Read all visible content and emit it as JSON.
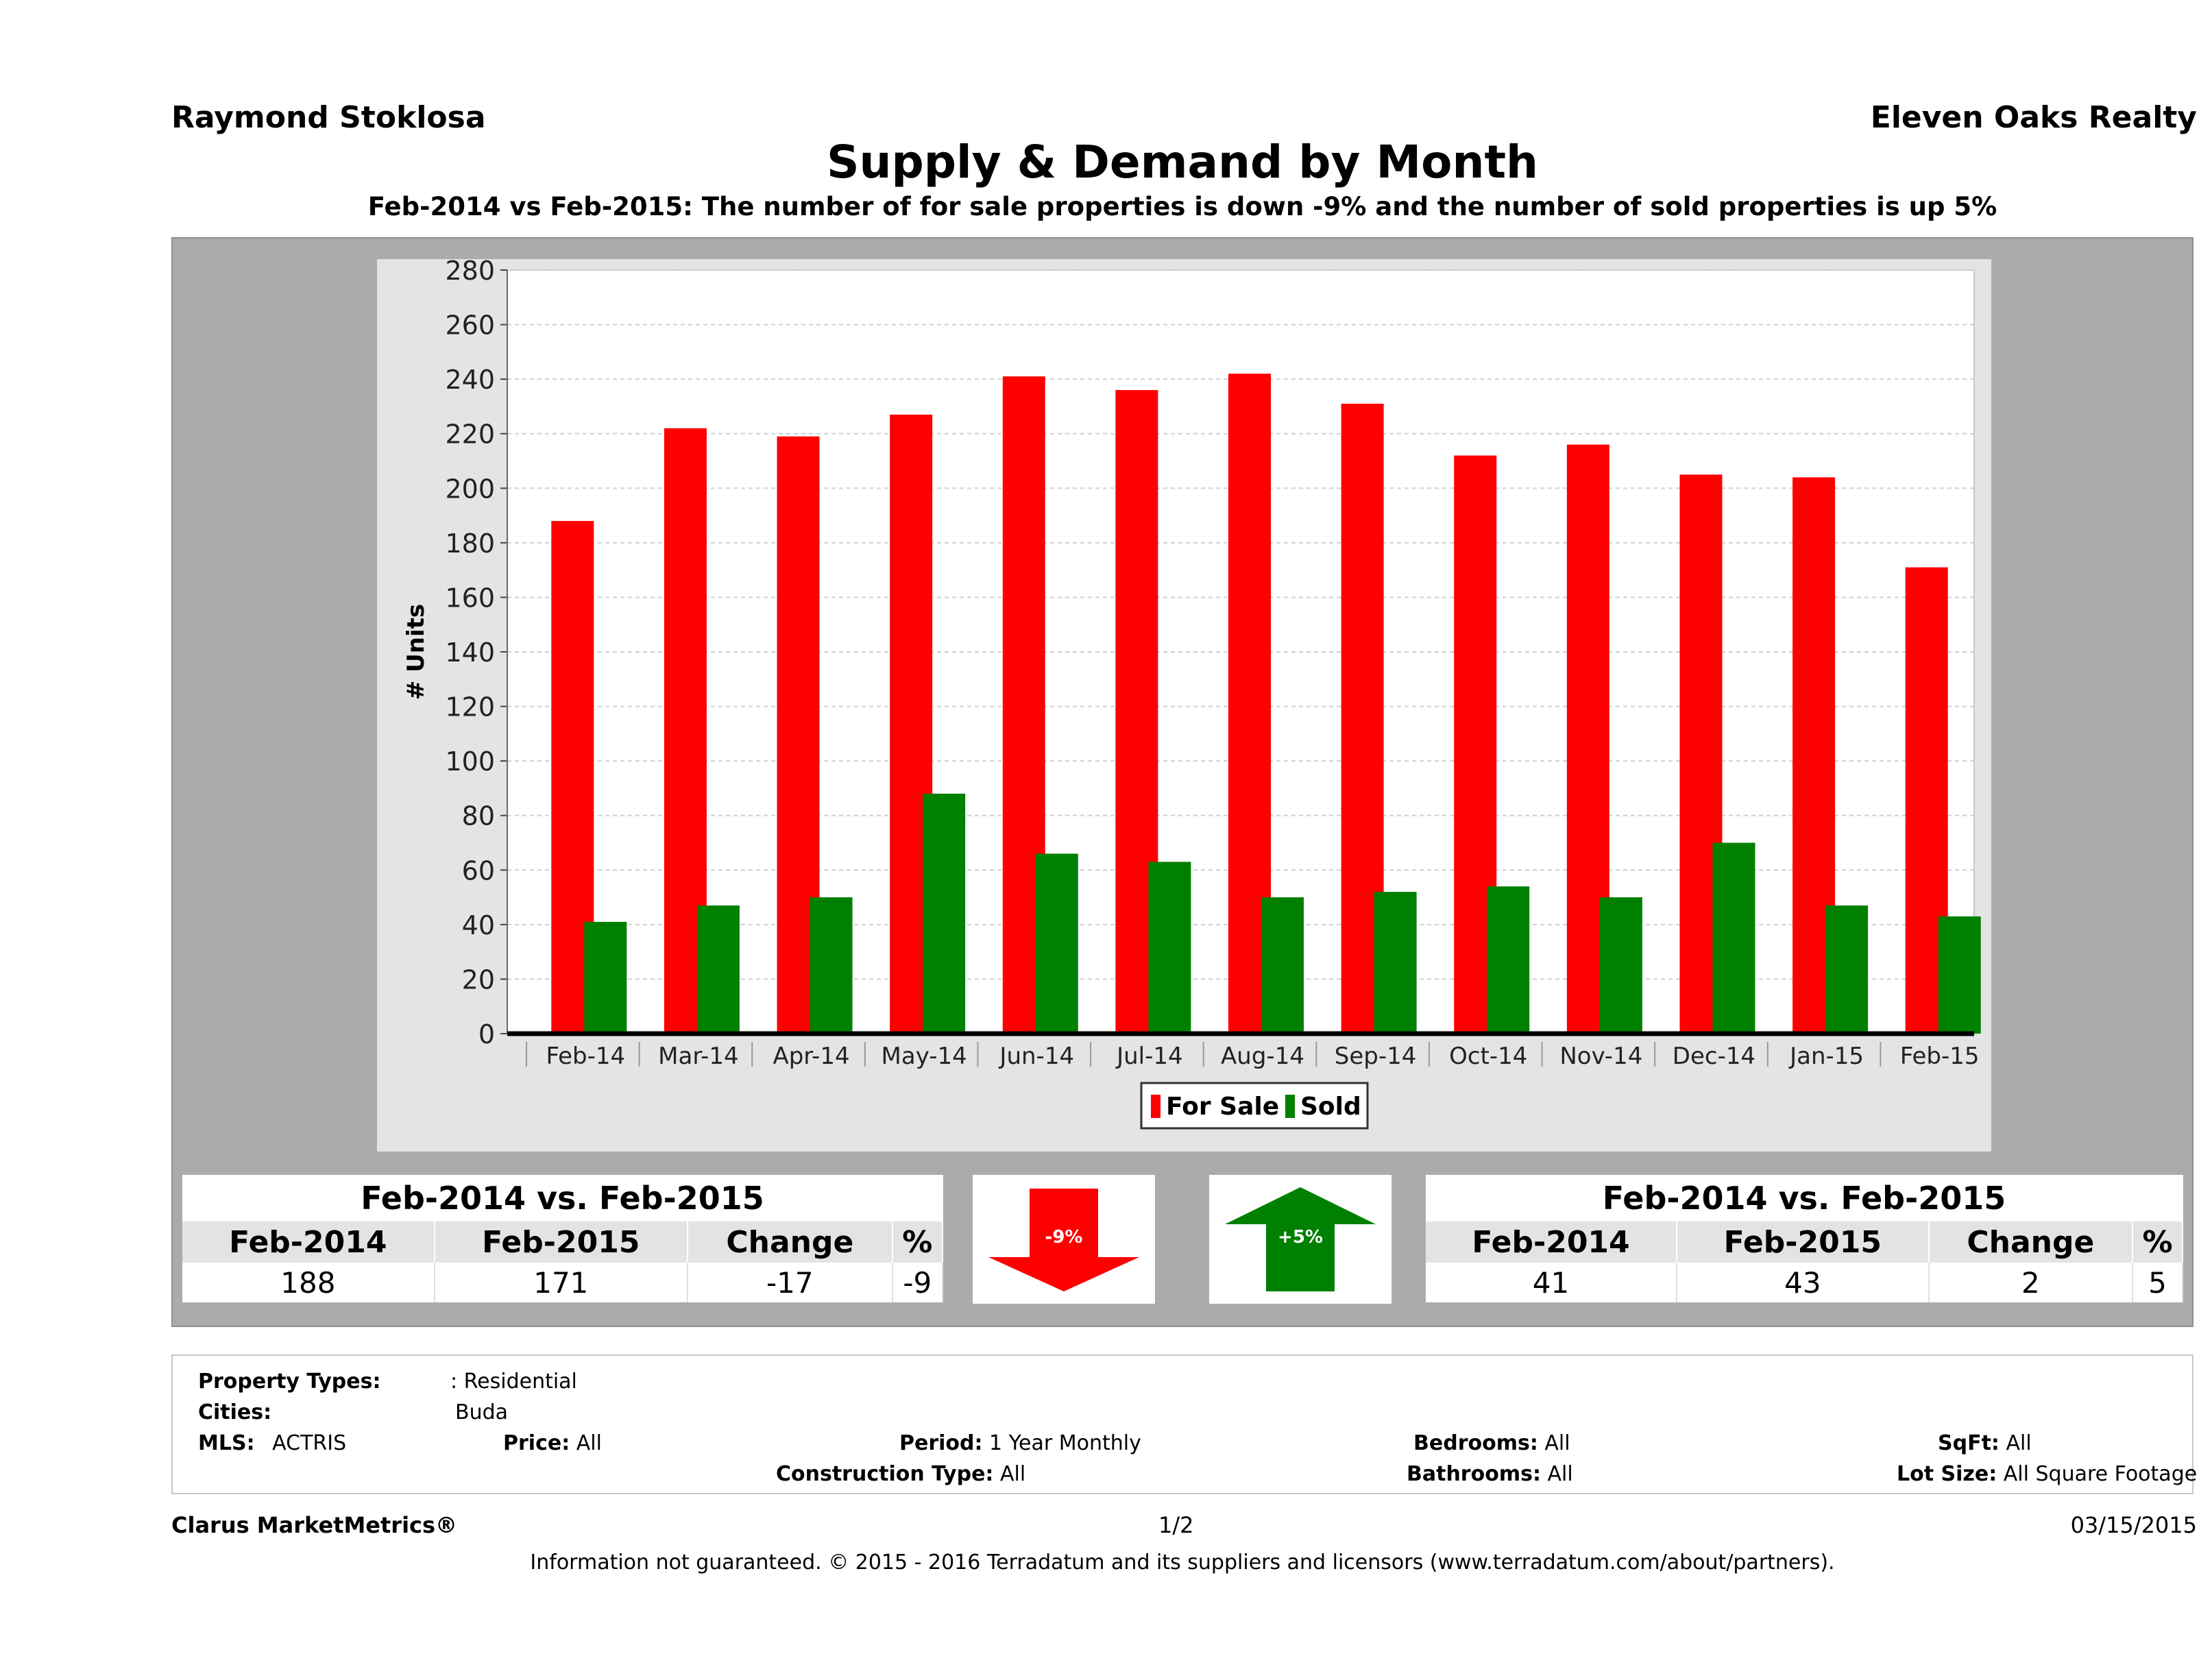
{
  "header": {
    "agent": "Raymond Stoklosa",
    "brokerage": "Eleven Oaks Realty",
    "title": "Supply & Demand by Month",
    "subtitle": "Feb-2014 vs Feb-2015: The number of for sale properties is down -9% and the number of sold properties is up 5%"
  },
  "chart_data": {
    "type": "bar",
    "ylabel": "# Units",
    "xlabel": "",
    "ylim": [
      0,
      280
    ],
    "yticks": [
      0,
      20,
      40,
      60,
      80,
      100,
      120,
      140,
      160,
      180,
      200,
      220,
      240,
      260,
      280
    ],
    "grid": true,
    "legend_position": "bottom-center",
    "categories": [
      "Feb-14",
      "Mar-14",
      "Apr-14",
      "May-14",
      "Jun-14",
      "Jul-14",
      "Aug-14",
      "Sep-14",
      "Oct-14",
      "Nov-14",
      "Dec-14",
      "Jan-15",
      "Feb-15"
    ],
    "series": [
      {
        "name": "For Sale",
        "color": "#ff0000",
        "values": [
          188,
          222,
          219,
          227,
          241,
          236,
          242,
          231,
          212,
          216,
          205,
          204,
          171
        ]
      },
      {
        "name": "Sold",
        "color": "#008000",
        "values": [
          41,
          47,
          50,
          88,
          66,
          63,
          50,
          52,
          54,
          50,
          70,
          47,
          43
        ]
      }
    ]
  },
  "for_sale_table": {
    "caption": "Feb-2014 vs. Feb-2015",
    "headers": [
      "Feb-2014",
      "Feb-2015",
      "Change",
      "%"
    ],
    "values": [
      "188",
      "171",
      "-17",
      "-9"
    ]
  },
  "sold_table": {
    "caption": "Feb-2014 vs. Feb-2015",
    "headers": [
      "Feb-2014",
      "Feb-2015",
      "Change",
      "%"
    ],
    "values": [
      "41",
      "43",
      "2",
      "5"
    ]
  },
  "arrows": {
    "for_sale": {
      "label": "-9%",
      "direction": "down",
      "color": "#ff0000"
    },
    "sold": {
      "label": "+5%",
      "direction": "up",
      "color": "#008000"
    }
  },
  "criteria": {
    "property_types_label": "Property Types:",
    "property_types_value": ": Residential",
    "cities_label": "Cities:",
    "cities_value": "Buda",
    "mls_label": "MLS:",
    "mls_value": "ACTRIS",
    "price_label": "Price:",
    "price_value": "All",
    "period_label": "Period:",
    "period_value": "1 Year Monthly",
    "construction_label": "Construction Type:",
    "construction_value": "All",
    "bedrooms_label": "Bedrooms:",
    "bedrooms_value": "All",
    "bathrooms_label": "Bathrooms:",
    "bathrooms_value": "All",
    "sqft_label": "SqFt:",
    "sqft_value": "All",
    "lotsize_label": "Lot Size:",
    "lotsize_value": "All Square Footage"
  },
  "footer": {
    "brand": "Clarus MarketMetrics®",
    "page": "1/2",
    "date": "03/15/2015",
    "disclaimer": "Information not guaranteed. © 2015 - 2016 Terradatum and its suppliers and licensors (www.terradatum.com/about/partners)."
  }
}
